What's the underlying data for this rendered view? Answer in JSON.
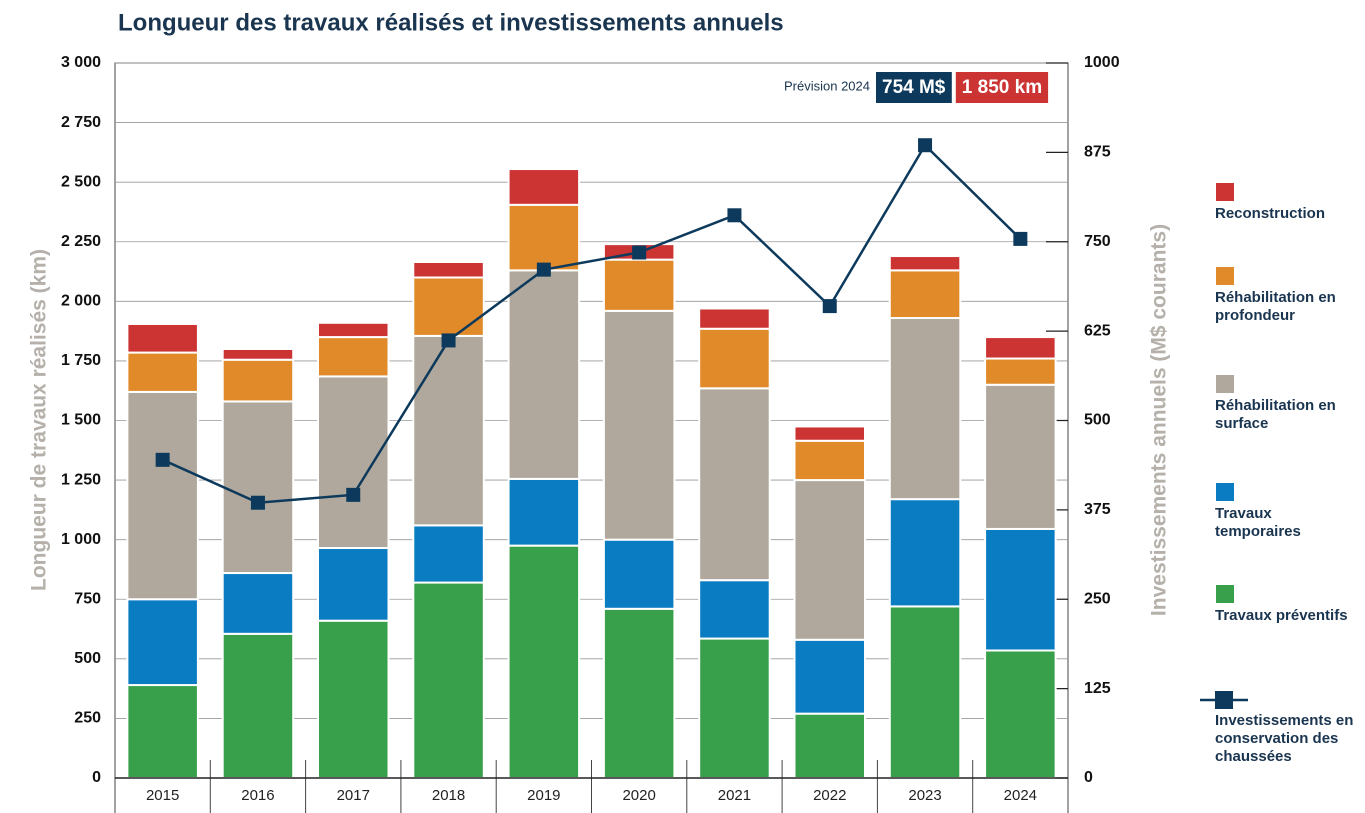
{
  "chart_data": {
    "type": "bar",
    "stacked": true,
    "title": "Longueur des travaux réalisés et investissements annuels",
    "y_label": "Longueur de travaux réalisés (km)",
    "y2_label": "Investissements annuels (M$ courants)",
    "annotation": {
      "label": "Prévision 2024",
      "investment": "754 M$",
      "length": "1 850 km"
    },
    "categories": [
      "2015",
      "2016",
      "2017",
      "2018",
      "2019",
      "2020",
      "2021",
      "2022",
      "2023",
      "2024"
    ],
    "series": [
      {
        "name": "Travaux préventifs",
        "color": "#38a04a",
        "values": [
          390,
          605,
          660,
          820,
          975,
          710,
          585,
          270,
          720,
          535
        ]
      },
      {
        "name": "Travaux temporaires",
        "color": "#0a7cc2",
        "values": [
          360,
          255,
          305,
          240,
          280,
          290,
          245,
          310,
          450,
          510
        ]
      },
      {
        "name": "Réhabilitation en surface",
        "color": "#b0a89c",
        "values": [
          870,
          720,
          720,
          795,
          875,
          960,
          805,
          670,
          760,
          605
        ]
      },
      {
        "name": "Réhabilitation en profondeur",
        "color": "#e08a2a",
        "values": [
          165,
          175,
          165,
          245,
          275,
          215,
          250,
          165,
          200,
          110
        ]
      },
      {
        "name": "Reconstruction",
        "color": "#cc3333",
        "values": [
          120,
          45,
          60,
          65,
          150,
          65,
          85,
          60,
          60,
          90
        ]
      },
      {
        "name": "Investissements en conservation des chaussées",
        "color": "#0d3a5c",
        "type": "line",
        "axis": "y2",
        "values": [
          445,
          385,
          396,
          612,
          711,
          735,
          787,
          660,
          885,
          754
        ]
      }
    ],
    "ylim": [
      0,
      3000
    ],
    "yticks": [
      0,
      250,
      500,
      750,
      {
        "value": 1000,
        "label": "1 000"
      },
      {
        "value": 1250,
        "label": "1 250"
      },
      {
        "value": 1500,
        "label": "1 500"
      },
      {
        "value": 1750,
        "label": "1 750"
      },
      {
        "value": 2000,
        "label": "2 000"
      },
      {
        "value": 2250,
        "label": "2 250"
      },
      {
        "value": 2500,
        "label": "2 500"
      },
      {
        "value": 2750,
        "label": "2 750"
      },
      {
        "value": 3000,
        "label": "3 000"
      }
    ],
    "y2lim": [
      0,
      1000
    ],
    "y2ticks": [
      0,
      125,
      250,
      375,
      500,
      625,
      750,
      875,
      1000
    ],
    "grid": true
  }
}
